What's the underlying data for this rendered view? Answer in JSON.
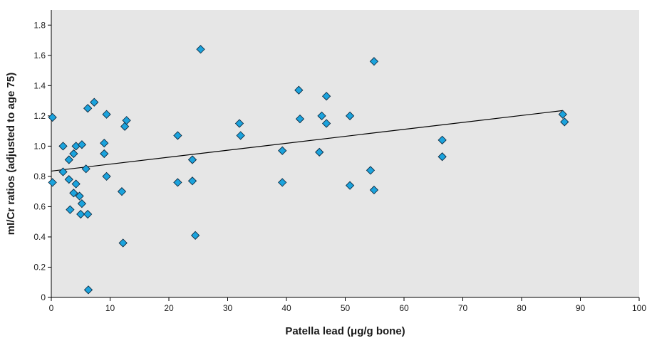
{
  "chart_data": {
    "type": "scatter",
    "title": "",
    "xlabel": "Patella lead (μg/g bone)",
    "ylabel": "mI/Cr ratios (adjusted to age 75)",
    "xlim": [
      0,
      100
    ],
    "ylim": [
      0,
      1.9
    ],
    "xticks": [
      0,
      10,
      20,
      30,
      40,
      50,
      60,
      70,
      80,
      90,
      100
    ],
    "yticks": [
      0,
      0.2,
      0.4,
      0.6,
      0.8,
      1.0,
      1.2,
      1.4,
      1.6,
      1.8
    ],
    "ytick_labels": [
      "0",
      "0.2",
      "0.4",
      "0.6",
      "0.8",
      "1.0",
      "1.2",
      "1.4",
      "1.6",
      "1.8"
    ],
    "grid": false,
    "legend": "none",
    "background_color": "#e6e6e6",
    "marker_color": "#1ba3dd",
    "marker_edge_color": "#0d2a40",
    "trendline": {
      "x": [
        0,
        87
      ],
      "y": [
        0.835,
        1.235
      ],
      "color": "#000000"
    },
    "points": [
      {
        "x": 0.2,
        "y": 1.19
      },
      {
        "x": 0.2,
        "y": 0.76
      },
      {
        "x": 2.0,
        "y": 1.0
      },
      {
        "x": 2.0,
        "y": 0.83
      },
      {
        "x": 3.0,
        "y": 0.91
      },
      {
        "x": 3.0,
        "y": 0.78
      },
      {
        "x": 3.2,
        "y": 0.58
      },
      {
        "x": 3.8,
        "y": 0.95
      },
      {
        "x": 3.8,
        "y": 0.69
      },
      {
        "x": 4.2,
        "y": 1.0
      },
      {
        "x": 4.2,
        "y": 0.75
      },
      {
        "x": 4.8,
        "y": 0.67
      },
      {
        "x": 5.0,
        "y": 0.55
      },
      {
        "x": 5.2,
        "y": 1.01
      },
      {
        "x": 5.2,
        "y": 0.62
      },
      {
        "x": 5.9,
        "y": 0.85
      },
      {
        "x": 6.2,
        "y": 1.25
      },
      {
        "x": 6.2,
        "y": 0.55
      },
      {
        "x": 6.3,
        "y": 0.05
      },
      {
        "x": 7.3,
        "y": 1.29
      },
      {
        "x": 9.0,
        "y": 1.02
      },
      {
        "x": 9.0,
        "y": 0.95
      },
      {
        "x": 9.4,
        "y": 1.21
      },
      {
        "x": 9.4,
        "y": 0.8
      },
      {
        "x": 12.0,
        "y": 0.7
      },
      {
        "x": 12.2,
        "y": 0.36
      },
      {
        "x": 12.5,
        "y": 1.13
      },
      {
        "x": 12.8,
        "y": 1.17
      },
      {
        "x": 21.5,
        "y": 1.07
      },
      {
        "x": 21.5,
        "y": 0.76
      },
      {
        "x": 24.0,
        "y": 0.91
      },
      {
        "x": 24.0,
        "y": 0.77
      },
      {
        "x": 24.5,
        "y": 0.41
      },
      {
        "x": 25.4,
        "y": 1.64
      },
      {
        "x": 32.0,
        "y": 1.15
      },
      {
        "x": 32.2,
        "y": 1.07
      },
      {
        "x": 39.3,
        "y": 0.97
      },
      {
        "x": 39.3,
        "y": 0.76
      },
      {
        "x": 42.1,
        "y": 1.37
      },
      {
        "x": 42.3,
        "y": 1.18
      },
      {
        "x": 45.6,
        "y": 0.96
      },
      {
        "x": 46.0,
        "y": 1.2
      },
      {
        "x": 46.8,
        "y": 1.33
      },
      {
        "x": 46.8,
        "y": 1.15
      },
      {
        "x": 50.8,
        "y": 1.2
      },
      {
        "x": 50.8,
        "y": 0.74
      },
      {
        "x": 54.3,
        "y": 0.84
      },
      {
        "x": 54.9,
        "y": 1.56
      },
      {
        "x": 54.9,
        "y": 0.71
      },
      {
        "x": 66.5,
        "y": 1.04
      },
      {
        "x": 66.5,
        "y": 0.93
      },
      {
        "x": 87.0,
        "y": 1.21
      },
      {
        "x": 87.3,
        "y": 1.16
      }
    ]
  }
}
